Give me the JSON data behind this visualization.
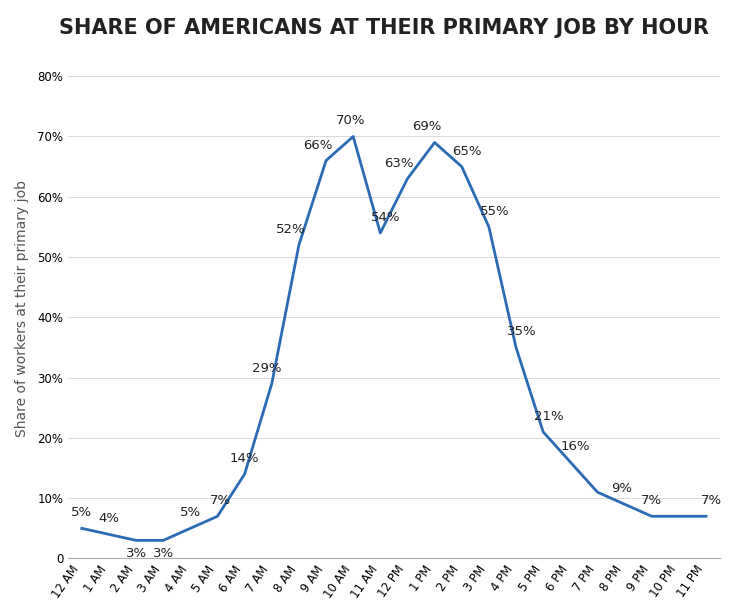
{
  "title": "SHARE OF AMERICANS AT THEIR PRIMARY JOB BY HOUR",
  "ylabel": "Share of workers at their primary job",
  "hours": [
    "12 AM",
    "1 AM",
    "2 AM",
    "3 AM",
    "4 AM",
    "5 AM",
    "6 AM",
    "7 AM",
    "8 AM",
    "9 AM",
    "10 AM",
    "11 AM",
    "12 PM",
    "1 PM",
    "2 PM",
    "3 PM",
    "4 PM",
    "5 PM",
    "6 PM",
    "7 PM",
    "8 PM",
    "9 PM",
    "10 PM",
    "11 PM"
  ],
  "values": [
    5,
    4,
    3,
    3,
    5,
    7,
    14,
    29,
    52,
    66,
    70,
    54,
    63,
    69,
    65,
    55,
    35,
    21,
    16,
    11,
    9,
    7,
    7,
    7
  ],
  "show_labels": [
    true,
    true,
    true,
    true,
    true,
    true,
    true,
    true,
    true,
    true,
    true,
    true,
    true,
    true,
    true,
    true,
    true,
    true,
    true,
    false,
    true,
    true,
    false,
    true
  ],
  "label_offsets_x": [
    0,
    0,
    0,
    0,
    0,
    0.1,
    0,
    -0.2,
    -0.3,
    -0.3,
    -0.1,
    0.2,
    -0.3,
    -0.3,
    0.2,
    0.2,
    0.2,
    0.2,
    0.2,
    0,
    -0.1,
    0.0,
    -0.4,
    0.2
  ],
  "label_offsets_y": [
    1.5,
    1.5,
    -3.2,
    -3.2,
    1.5,
    1.5,
    1.5,
    1.5,
    1.5,
    1.5,
    1.5,
    1.5,
    1.5,
    1.5,
    1.5,
    1.5,
    1.5,
    1.5,
    1.5,
    1.5,
    1.5,
    1.5,
    1.5,
    1.5
  ],
  "line_color": "#2B6BB5",
  "line_width": 2.0,
  "title_fontsize": 15,
  "ylabel_fontsize": 10,
  "tick_fontsize": 8.5,
  "annotation_fontsize": 9.5,
  "yticks": [
    0,
    10,
    20,
    30,
    40,
    50,
    60,
    70,
    80
  ],
  "ylim": [
    0,
    83
  ],
  "background_color": "#ffffff",
  "title_color": "#222222",
  "grid_color": "#cccccc",
  "bottom_spine_color": "#aaaaaa"
}
